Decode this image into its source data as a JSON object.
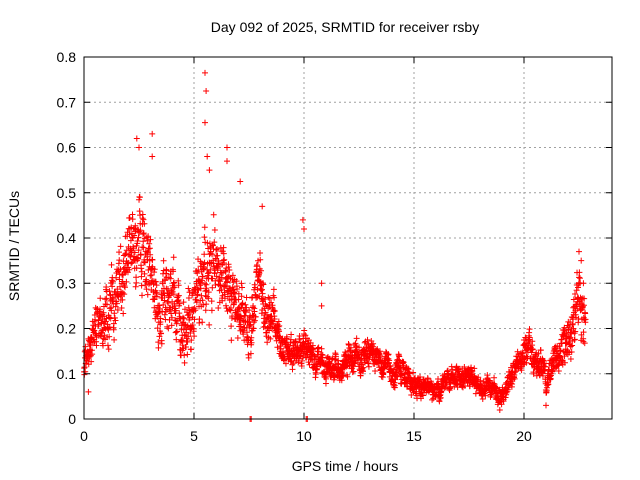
{
  "chart_data": {
    "type": "scatter",
    "title": "Day 092 of 2025, SRMTID for receiver rsby",
    "xlabel": "GPS time / hours",
    "ylabel": "SRMTID / TECUs",
    "xlim": [
      0,
      24
    ],
    "ylim": [
      0,
      0.8
    ],
    "x_ticks": [
      0,
      5,
      10,
      15,
      20
    ],
    "x_tick_labels": [
      "0",
      "5",
      "10",
      "15",
      "20"
    ],
    "y_ticks": [
      0,
      0.1,
      0.2,
      0.3,
      0.4,
      0.5,
      0.6,
      0.7,
      0.8
    ],
    "y_tick_labels": [
      "0",
      "0.1",
      "0.2",
      "0.3",
      "0.4",
      "0.5",
      "0.6",
      "0.7",
      "0.8"
    ],
    "grid": true,
    "marker": "plus",
    "series": [
      {
        "name": "SRMTID",
        "color": "#ff0000",
        "envelope_x": [
          0,
          0.3,
          0.6,
          1.0,
          1.5,
          2.0,
          2.5,
          3.0,
          3.5,
          4.0,
          4.5,
          5.0,
          5.5,
          6.0,
          6.5,
          7.0,
          7.5,
          8.0,
          8.5,
          9.0,
          9.5,
          10.0,
          10.5,
          11.0,
          11.5,
          12.0,
          12.5,
          13.0,
          13.5,
          14.0,
          14.5,
          15.0,
          15.5,
          16.0,
          16.5,
          17.0,
          17.5,
          18.0,
          18.5,
          19.0,
          19.5,
          20.0,
          20.5,
          21.0,
          21.5,
          22.0,
          22.5,
          22.8
        ],
        "envelope_center": [
          0.14,
          0.17,
          0.21,
          0.24,
          0.28,
          0.36,
          0.38,
          0.32,
          0.24,
          0.26,
          0.18,
          0.28,
          0.32,
          0.34,
          0.3,
          0.24,
          0.2,
          0.28,
          0.22,
          0.16,
          0.15,
          0.16,
          0.14,
          0.11,
          0.11,
          0.13,
          0.15,
          0.14,
          0.11,
          0.11,
          0.1,
          0.08,
          0.07,
          0.06,
          0.08,
          0.1,
          0.09,
          0.07,
          0.06,
          0.05,
          0.09,
          0.16,
          0.14,
          0.08,
          0.14,
          0.18,
          0.24,
          0.2
        ],
        "envelope_spread": [
          0.06,
          0.07,
          0.08,
          0.1,
          0.12,
          0.12,
          0.14,
          0.12,
          0.11,
          0.12,
          0.1,
          0.12,
          0.14,
          0.13,
          0.12,
          0.1,
          0.09,
          0.1,
          0.08,
          0.05,
          0.05,
          0.05,
          0.05,
          0.04,
          0.04,
          0.05,
          0.05,
          0.05,
          0.04,
          0.04,
          0.04,
          0.04,
          0.03,
          0.03,
          0.03,
          0.04,
          0.04,
          0.03,
          0.03,
          0.03,
          0.04,
          0.05,
          0.05,
          0.04,
          0.06,
          0.08,
          0.1,
          0.08
        ],
        "notable_points": [
          {
            "x": 2.4,
            "y": 0.62
          },
          {
            "x": 2.5,
            "y": 0.6
          },
          {
            "x": 3.1,
            "y": 0.63
          },
          {
            "x": 3.1,
            "y": 0.58
          },
          {
            "x": 5.5,
            "y": 0.765
          },
          {
            "x": 5.55,
            "y": 0.725
          },
          {
            "x": 5.5,
            "y": 0.655
          },
          {
            "x": 5.6,
            "y": 0.58
          },
          {
            "x": 5.7,
            "y": 0.55
          },
          {
            "x": 6.5,
            "y": 0.6
          },
          {
            "x": 6.5,
            "y": 0.57
          },
          {
            "x": 7.1,
            "y": 0.525
          },
          {
            "x": 8.1,
            "y": 0.47
          },
          {
            "x": 9.95,
            "y": 0.44
          },
          {
            "x": 10.0,
            "y": 0.42
          },
          {
            "x": 10.8,
            "y": 0.3
          },
          {
            "x": 10.8,
            "y": 0.25
          },
          {
            "x": 7.55,
            "y": 0.0
          },
          {
            "x": 7.6,
            "y": 0.0
          },
          {
            "x": 10.1,
            "y": 0.0
          },
          {
            "x": 10.15,
            "y": 0.0
          },
          {
            "x": 22.5,
            "y": 0.37
          },
          {
            "x": 22.6,
            "y": 0.35
          },
          {
            "x": 22.7,
            "y": 0.3
          },
          {
            "x": 21.0,
            "y": 0.03
          },
          {
            "x": 18.9,
            "y": 0.02
          },
          {
            "x": 0.2,
            "y": 0.06
          }
        ]
      }
    ]
  }
}
